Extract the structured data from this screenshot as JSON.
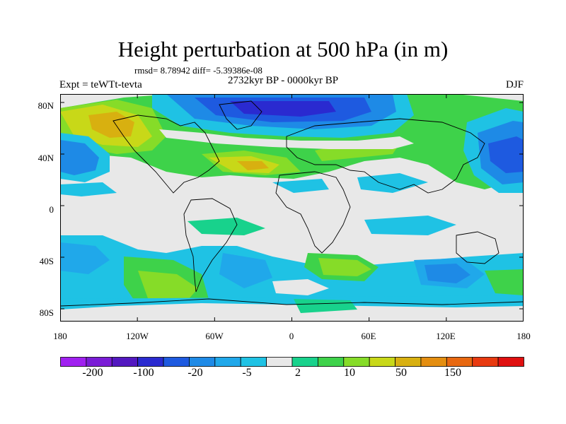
{
  "title": "Height perturbation at 500 hPa (in m)",
  "stats": "rmsd= 8.78942 diff= -5.39386e-08",
  "experiment": "Expt = teWTt-tevta",
  "period": "2732kyr BP - 0000kyr BP",
  "season": "DJF",
  "y_axis": {
    "tick_labels": [
      "80N",
      "40N",
      "0",
      "40S",
      "80S"
    ]
  },
  "x_axis": {
    "tick_labels": [
      "180",
      "120W",
      "60W",
      "0",
      "60E",
      "120E",
      "180"
    ]
  },
  "colorbar": {
    "labels": [
      "-200",
      "-100",
      "-20",
      "-5",
      "2",
      "10",
      "50",
      "150"
    ],
    "colors": [
      "#a020f0",
      "#7a1cd6",
      "#5318c0",
      "#2a2ad0",
      "#1e5ae0",
      "#1e8ae6",
      "#20a8ea",
      "#1fc2e4",
      "#e8e8e8",
      "#18d28c",
      "#3ed24a",
      "#86dc28",
      "#c8d818",
      "#d8b010",
      "#e48e10",
      "#e86810",
      "#e83a10",
      "#e01010"
    ]
  },
  "field_colors": {
    "background": "#e8e8e8",
    "cyan": "#1fc2e4",
    "light_blue": "#20a8ea",
    "mid_blue": "#1e8ae6",
    "blue": "#1e5ae0",
    "deep_blue": "#2a2ad0",
    "teal": "#18d28c",
    "green": "#3ed24a",
    "yellow_green": "#86dc28",
    "yellow": "#c8d818",
    "orange": "#d8b010"
  }
}
